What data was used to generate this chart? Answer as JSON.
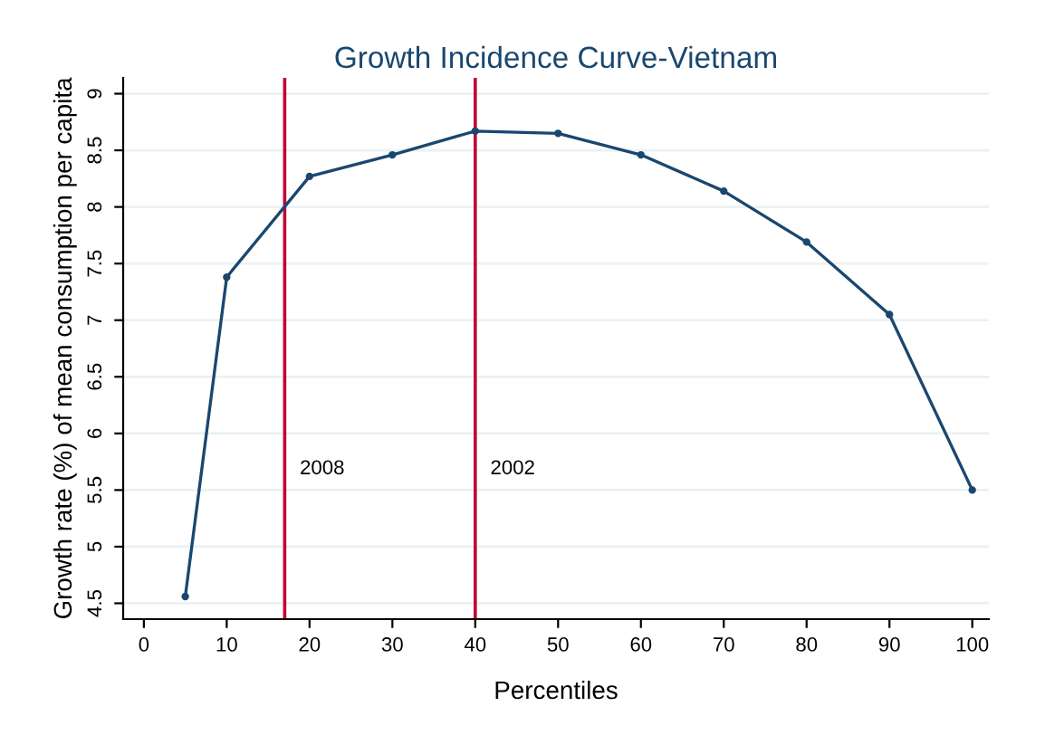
{
  "chart_data": {
    "type": "line",
    "title": "Growth Incidence Curve-Vietnam",
    "xlabel": "Percentiles",
    "ylabel": "Growth rate (%) of mean consumption per capita",
    "x": [
      5,
      10,
      20,
      30,
      40,
      50,
      60,
      70,
      80,
      90,
      100
    ],
    "series": [
      {
        "color": "#1a476f",
        "values": [
          4.56,
          7.38,
          8.27,
          8.46,
          8.67,
          8.65,
          8.46,
          8.14,
          7.69,
          7.05,
          5.5
        ]
      }
    ],
    "marker": "circle",
    "line_style": "solid",
    "xlim": [
      -2.5,
      102
    ],
    "ylim": [
      4.36,
      9.14
    ],
    "xticks": [
      0,
      10,
      20,
      30,
      40,
      50,
      60,
      70,
      80,
      90,
      100
    ],
    "yticks": [
      {
        "value": 4.5,
        "label": "4.5"
      },
      5,
      {
        "value": 5.5,
        "label": "5.5"
      },
      6,
      {
        "value": 6.5,
        "label": "6.5"
      },
      7,
      {
        "value": 7.5,
        "label": "7.5"
      },
      8,
      {
        "value": 8.5,
        "label": "8.5"
      },
      9
    ],
    "grid": "y",
    "ref_lines": [
      {
        "axis": "x",
        "value": 17,
        "color": "#c10534"
      },
      {
        "axis": "x",
        "value": 40,
        "color": "#c10534"
      }
    ],
    "annotations": [
      "2008",
      "2002"
    ]
  }
}
